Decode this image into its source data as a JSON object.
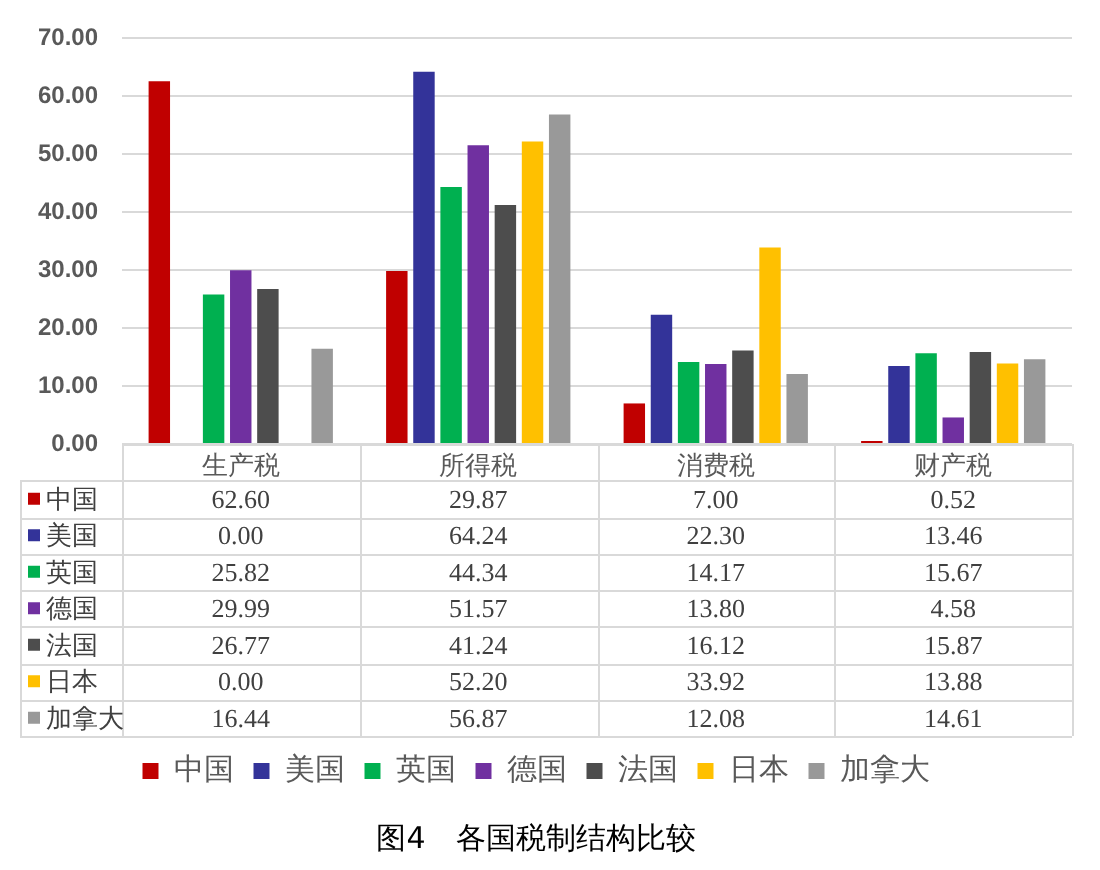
{
  "chart_data": {
    "type": "bar",
    "title": "图4　各国税制结构比较",
    "categories": [
      "生产税",
      "所得税",
      "消费税",
      "财产税"
    ],
    "series": [
      {
        "name": "中国",
        "color": "#c00000",
        "values": [
          62.6,
          29.87,
          7.0,
          0.52
        ],
        "value_labels": [
          "62.60",
          "29.87",
          "7.00",
          "0.52"
        ]
      },
      {
        "name": "美国",
        "color": "#333399",
        "values": [
          0.0,
          64.24,
          22.3,
          13.46
        ],
        "value_labels": [
          "0.00",
          "64.24",
          "22.30",
          "13.46"
        ]
      },
      {
        "name": "英国",
        "color": "#00b050",
        "values": [
          25.82,
          44.34,
          14.17,
          15.67
        ],
        "value_labels": [
          "25.82",
          "44.34",
          "14.17",
          "15.67"
        ]
      },
      {
        "name": "德国",
        "color": "#7030a0",
        "values": [
          29.99,
          51.57,
          13.8,
          4.58
        ],
        "value_labels": [
          "29.99",
          "51.57",
          "13.80",
          "4.58"
        ]
      },
      {
        "name": "法国",
        "color": "#4d4d4d",
        "values": [
          26.77,
          41.24,
          16.12,
          15.87
        ],
        "value_labels": [
          "26.77",
          "41.24",
          "16.12",
          "15.87"
        ]
      },
      {
        "name": "日本",
        "color": "#ffc000",
        "values": [
          0.0,
          52.2,
          33.92,
          13.88
        ],
        "value_labels": [
          "0.00",
          "52.20",
          "33.92",
          "13.88"
        ]
      },
      {
        "name": "加拿大",
        "color": "#999999",
        "values": [
          16.44,
          56.87,
          12.08,
          14.61
        ],
        "value_labels": [
          "16.44",
          "56.87",
          "12.08",
          "14.61"
        ]
      }
    ],
    "ylim": [
      0,
      70
    ],
    "yticks": [
      {
        "value": 0,
        "label": "0.00"
      },
      {
        "value": 10,
        "label": "10.00"
      },
      {
        "value": 20,
        "label": "20.00"
      },
      {
        "value": 30,
        "label": "30.00"
      },
      {
        "value": 40,
        "label": "40.00"
      },
      {
        "value": 50,
        "label": "50.00"
      },
      {
        "value": 60,
        "label": "60.00"
      },
      {
        "value": 70,
        "label": "70.00"
      }
    ],
    "grid": "y",
    "legend": "bottom"
  }
}
